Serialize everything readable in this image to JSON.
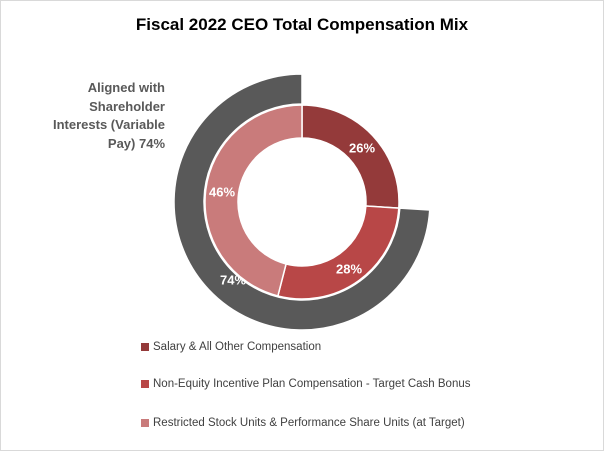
{
  "chart_data": {
    "type": "doughnut",
    "title": "Fiscal 2022 CEO Total Compensation Mix",
    "inner_ring": {
      "categories": [
        "Salary & All Other Compensation",
        "Non-Equity Incentive Plan Compensation - Target Cash Bonus",
        "Restricted Stock Units & Performance Share Units (at Target)"
      ],
      "values": [
        26,
        28,
        46
      ],
      "labels": [
        "26%",
        "28%",
        "46%"
      ],
      "colors": [
        "#943a3a",
        "#b84747",
        "#c97b7b"
      ]
    },
    "outer_ring": {
      "values": [
        26,
        74
      ],
      "visible": [
        false,
        true
      ],
      "labels": [
        "",
        "74%"
      ],
      "colors": [
        "#ffffff",
        "#595959"
      ],
      "annotation": "Aligned with Shareholder Interests (Variable Pay) 74%",
      "annotation_lines": [
        "Aligned with",
        "Shareholder",
        "Interests (Variable",
        "Pay) 74%"
      ]
    },
    "legend_position": "bottom"
  }
}
